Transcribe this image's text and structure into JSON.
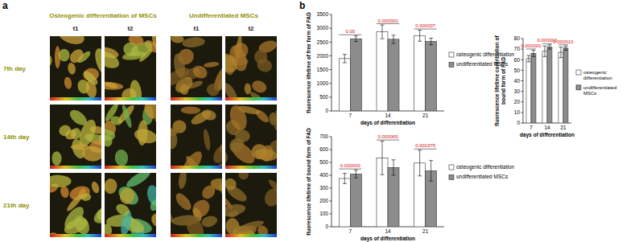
{
  "panel_a": {
    "label": "a",
    "columns": [
      {
        "title": "Osteogenic differentiation of MSCs",
        "times": [
          "t1",
          "t2"
        ]
      },
      {
        "title": "Undifferentiated MSCs",
        "times": [
          "t1",
          "t2"
        ]
      }
    ],
    "rows": [
      "7th day",
      "14th day",
      "21th day"
    ]
  },
  "panel_b": {
    "label": "b"
  },
  "chart_data": [
    {
      "type": "bar",
      "ylabel": "fluorescence lifetime of free form of FAD",
      "xlabel": "days of differentiation",
      "categories": [
        "7",
        "14",
        "21"
      ],
      "ylim": [
        0,
        3500
      ],
      "yticks": [
        0,
        500,
        1000,
        1500,
        2000,
        2500,
        3000,
        3500
      ],
      "grid": false,
      "legend": "right",
      "series": [
        {
          "name": "osteogenic differentiation",
          "color": "#ffffff",
          "values": [
            1900,
            2870,
            2730
          ],
          "errors": [
            150,
            250,
            200
          ]
        },
        {
          "name": "undifferentiated MSCs",
          "color": "#8c8c8c",
          "values": [
            2620,
            2600,
            2520
          ],
          "errors": [
            100,
            150,
            120
          ]
        }
      ],
      "annotations": [
        "0.00",
        "0.000000",
        "0.000007"
      ]
    },
    {
      "type": "bar",
      "ylabel": "fluorescence lifetime contribution of bound form of FAD",
      "xlabel": "days of differentiation",
      "categories": [
        "7",
        "14",
        "21"
      ],
      "ylim": [
        0,
        80
      ],
      "yticks": [
        0,
        10,
        20,
        30,
        40,
        50,
        60,
        70,
        80
      ],
      "grid": false,
      "legend": "right",
      "series": [
        {
          "name": "osteogenic differentiation",
          "color": "#ffffff",
          "values": [
            61,
            68,
            67
          ],
          "errors": [
            3,
            5,
            5
          ]
        },
        {
          "name": "undifferentiated MSCs",
          "color": "#8c8c8c",
          "values": [
            66,
            72,
            71
          ],
          "errors": [
            3,
            2,
            2
          ]
        }
      ],
      "annotations": [
        "0.000000",
        "0.000000",
        "0.000010"
      ]
    },
    {
      "type": "bar",
      "ylabel": "fluorescence lifetime of bound form of FAD",
      "xlabel": "days of differentiation",
      "categories": [
        "7",
        "14",
        "21"
      ],
      "ylim": [
        0,
        700
      ],
      "yticks": [
        0,
        100,
        200,
        300,
        400,
        500,
        600,
        700
      ],
      "grid": false,
      "legend": "right",
      "series": [
        {
          "name": "osteogenic differentiation",
          "color": "#ffffff",
          "values": [
            375,
            535,
            495
          ],
          "errors": [
            40,
            130,
            100
          ]
        },
        {
          "name": "undifferentiated MSCs",
          "color": "#8c8c8c",
          "values": [
            410,
            460,
            435
          ],
          "errors": [
            30,
            60,
            80
          ]
        }
      ],
      "annotations": [
        "0.000000",
        "0.000065",
        "0.001975"
      ]
    }
  ]
}
